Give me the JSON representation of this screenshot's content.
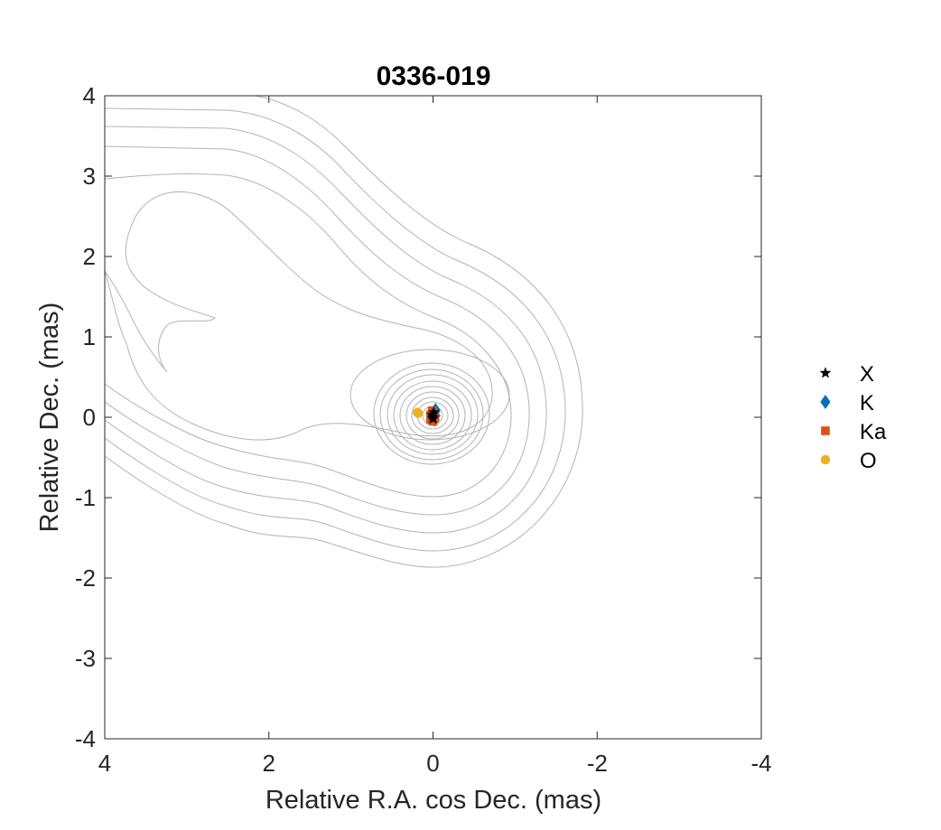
{
  "chart_data": {
    "type": "scatter",
    "title": "0336-019",
    "xlabel": "Relative R.A. cos Dec. (mas)",
    "ylabel": "Relative Dec. (mas)",
    "xlim": [
      4,
      -4
    ],
    "ylim": [
      -4,
      4
    ],
    "x_reversed": true,
    "x_ticks": [
      4,
      2,
      0,
      -2,
      -4
    ],
    "x_tick_labels": [
      "4",
      "2",
      "0",
      "-2",
      "-4"
    ],
    "y_ticks": [
      4,
      3,
      2,
      1,
      0,
      -1,
      -2,
      -3,
      -4
    ],
    "y_tick_labels": [
      "4",
      "3",
      "2",
      "1",
      "0",
      "-1",
      "-2",
      "-3",
      "-4"
    ],
    "grid": false,
    "legend_position": "right",
    "background_contours": {
      "color": "#b3b3b3",
      "description": "intensity contour map: core at origin with jet extending to the north-east (positive R.A., positive Dec.)"
    },
    "series": [
      {
        "name": "X",
        "marker": "star",
        "color": "#000000",
        "points": [
          [
            0.0,
            0.0
          ],
          [
            0.01,
            0.03
          ],
          [
            -0.01,
            0.06
          ],
          [
            0.0,
            -0.02
          ]
        ]
      },
      {
        "name": "K",
        "marker": "diamond",
        "color": "#0072BD",
        "points": [
          [
            -0.02,
            0.06
          ],
          [
            -0.03,
            0.09
          ],
          [
            -0.01,
            0.0
          ],
          [
            0.0,
            0.04
          ],
          [
            -0.03,
            0.02
          ],
          [
            -0.02,
            -0.03
          ]
        ]
      },
      {
        "name": "Ka",
        "marker": "square",
        "color": "#D95319",
        "points": [
          [
            0.02,
            0.0
          ],
          [
            0.0,
            0.05
          ],
          [
            0.03,
            -0.03
          ],
          [
            0.0,
            -0.05
          ],
          [
            0.01,
            0.08
          ],
          [
            0.03,
            0.03
          ],
          [
            -0.02,
            -0.01
          ]
        ]
      },
      {
        "name": "O",
        "marker": "circle",
        "color": "#EDB120",
        "points": [
          [
            0.18,
            0.05
          ],
          [
            0.19,
            0.06
          ]
        ]
      }
    ]
  }
}
